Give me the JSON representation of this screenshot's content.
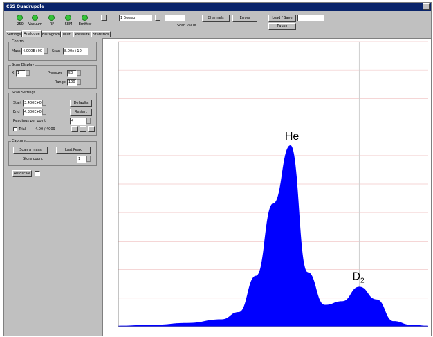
{
  "window": {
    "title": "CSS Quadrupole"
  },
  "toolbar": {
    "indicators": [
      {
        "label": "250"
      },
      {
        "label": "Vacuum"
      },
      {
        "label": "RF"
      },
      {
        "label": "SEM"
      },
      {
        "label": "Emitter"
      }
    ],
    "mode_select": "1 Sweep",
    "scan_value_label": "Scan value",
    "buttons": {
      "channels": "Channels",
      "errors": "Errors",
      "load_save": "Load / Save",
      "pause": "Pause"
    }
  },
  "tabs": [
    "Settings",
    "Analogue",
    "Histogram",
    "Multi",
    "Pressure",
    "Statistics"
  ],
  "active_tab": 1,
  "panel": {
    "control": {
      "title": "Control",
      "mass_label": "Mass",
      "mass_value": "4.000E+00",
      "scan_label": "Scan",
      "scan_value": "8.00e+10"
    },
    "display": {
      "title": "Scan Display",
      "x_label": "X",
      "x_value": "1",
      "pressure_label": "Pressure",
      "pressure_value": "50",
      "range_label": "Range",
      "range_value": "100"
    },
    "scan_settings": {
      "title": "Scan Settings",
      "start_label": "Start",
      "start_value": "3.400E+00",
      "defaults_btn": "Defaults",
      "end_label": "End",
      "end_value": "4.300E+00",
      "restart_btn": "Restart",
      "readings_label": "Readings per point",
      "readings_value": "4",
      "trial_label": "Trial",
      "trial_value": "4.00 / 4009"
    },
    "capture": {
      "title": "Capture",
      "first_btn": "Scan a mass",
      "last_btn": "Last Peak",
      "store_label": "Store count",
      "store_value": "1",
      "autoscale_btn": "Autoscale"
    }
  },
  "chart_data": {
    "type": "area",
    "x": [
      3.4,
      3.5,
      3.6,
      3.7,
      3.75,
      3.8,
      3.85,
      3.9,
      3.95,
      4.0,
      4.05,
      4.1,
      4.15,
      4.2,
      4.25,
      4.3
    ],
    "y": [
      0.5,
      1,
      2,
      4,
      8,
      28,
      68,
      100,
      30,
      12,
      14,
      22,
      15,
      3,
      1,
      0.5
    ],
    "annotations": [
      {
        "text": "He"
      },
      {
        "text": "D",
        "sub": "2"
      }
    ],
    "series_color": "#0000ff",
    "grid": "horizontal"
  }
}
